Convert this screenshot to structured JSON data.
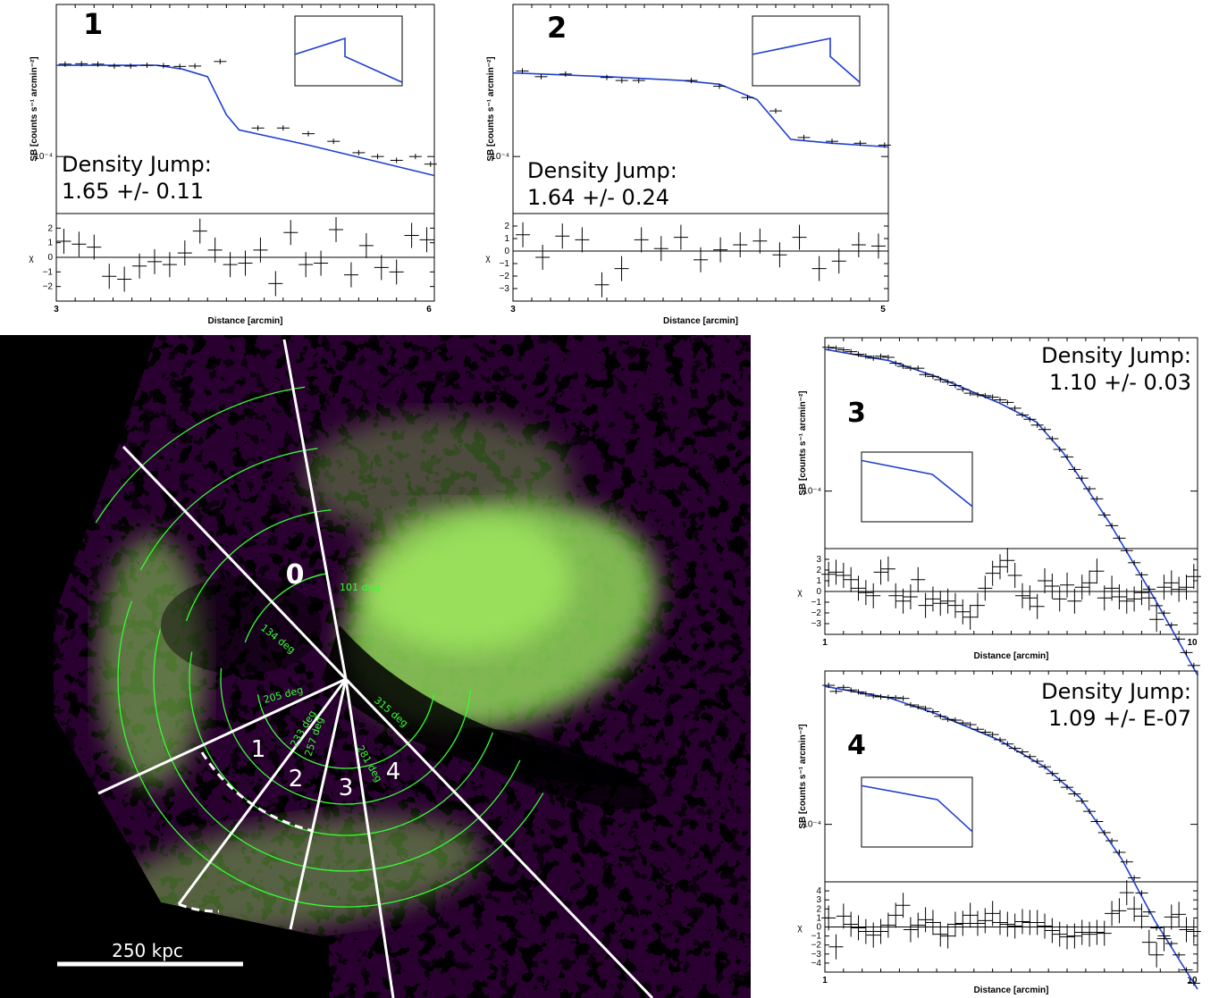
{
  "chart_data": [
    {
      "type": "line",
      "panel": "1",
      "ylabel": "SB [counts s⁻¹ arcmin⁻²]",
      "xlabel": "Distance [arcmin]",
      "chi_label": "χ",
      "x_ticks": [
        "3",
        "6"
      ],
      "y_tick": "10⁻⁴",
      "chi_ticks": [
        "2",
        "1",
        "0",
        "−1",
        "−2"
      ],
      "chi_range": [
        -3,
        3
      ],
      "annotation": [
        "Density Jump:",
        "1.65 +/- 0.11"
      ],
      "xlim": [
        3,
        6
      ],
      "jump_at": 4.4,
      "model_log": [
        [
          3.0,
          -3.76
        ],
        [
          3.4,
          -3.76
        ],
        [
          3.8,
          -3.76
        ],
        [
          4.0,
          -3.77
        ],
        [
          4.2,
          -3.79
        ],
        [
          4.35,
          -3.89
        ],
        [
          4.45,
          -3.93
        ],
        [
          5.0,
          -3.97
        ],
        [
          5.5,
          -4.01
        ],
        [
          6.0,
          -4.05
        ]
      ],
      "data_log": [
        [
          3.07,
          -3.757
        ],
        [
          3.2,
          -3.756
        ],
        [
          3.33,
          -3.757
        ],
        [
          3.46,
          -3.762
        ],
        [
          3.59,
          -3.762
        ],
        [
          3.72,
          -3.76
        ],
        [
          3.85,
          -3.761
        ],
        [
          3.98,
          -3.763
        ],
        [
          4.1,
          -3.762
        ],
        [
          4.3,
          -3.75
        ],
        [
          4.6,
          -3.925
        ],
        [
          4.8,
          -3.925
        ],
        [
          5.0,
          -3.94
        ],
        [
          5.2,
          -3.96
        ],
        [
          5.4,
          -3.99
        ],
        [
          5.55,
          -4.0
        ],
        [
          5.7,
          -4.01
        ],
        [
          5.85,
          -4.0
        ],
        [
          5.97,
          -4.02
        ]
      ],
      "chi": [
        1.1,
        0.9,
        0.7,
        -1.3,
        -1.5,
        -0.6,
        -0.3,
        -0.5,
        0.3,
        1.8,
        0.5,
        -0.5,
        -0.4,
        0.5,
        -1.8,
        1.7,
        -0.5,
        -0.4,
        1.9,
        -1.2,
        0.8,
        -0.7,
        -1.0,
        1.5,
        1.2
      ]
    },
    {
      "type": "line",
      "panel": "2",
      "ylabel": "SB [counts s⁻¹ arcmin⁻²]",
      "xlabel": "Distance [arcmin]",
      "chi_label": "χ",
      "x_ticks": [
        "3",
        "5"
      ],
      "y_tick": "10⁻⁴",
      "chi_ticks": [
        "2",
        "1",
        "0",
        "−1",
        "−2",
        "−3"
      ],
      "chi_range": [
        -4,
        3
      ],
      "annotation": [
        "Density Jump:",
        "1.64 +/- 0.24"
      ],
      "xlim": [
        3,
        5
      ],
      "jump_at": 4.45,
      "model_log": [
        [
          3.0,
          -3.78
        ],
        [
          3.5,
          -3.79
        ],
        [
          3.9,
          -3.8
        ],
        [
          4.1,
          -3.81
        ],
        [
          4.3,
          -3.85
        ],
        [
          4.42,
          -3.92
        ],
        [
          4.48,
          -3.955
        ],
        [
          4.7,
          -3.965
        ],
        [
          5.0,
          -3.975
        ]
      ],
      "data_log": [
        [
          3.05,
          -3.775
        ],
        [
          3.15,
          -3.79
        ],
        [
          3.28,
          -3.783
        ],
        [
          3.5,
          -3.792
        ],
        [
          3.58,
          -3.8
        ],
        [
          3.67,
          -3.8
        ],
        [
          3.95,
          -3.8
        ],
        [
          4.1,
          -3.815
        ],
        [
          4.25,
          -3.845
        ],
        [
          4.4,
          -3.88
        ],
        [
          4.55,
          -3.95
        ],
        [
          4.7,
          -3.96
        ],
        [
          4.85,
          -3.965
        ],
        [
          4.98,
          -3.97
        ]
      ],
      "chi": [
        1.3,
        -0.5,
        1.2,
        0.9,
        -2.7,
        -1.4,
        0.9,
        0.2,
        1.1,
        -0.7,
        0.1,
        0.5,
        0.8,
        -0.3,
        1.1,
        -1.4,
        -0.8,
        0.5,
        0.4
      ]
    },
    {
      "type": "line",
      "panel": "3",
      "ylabel": "SB [counts s⁻¹ arcmin⁻²]",
      "xlabel": "Distance [arcmin]",
      "chi_label": "χ",
      "x_ticks": [
        "1",
        "10"
      ],
      "y_tick": "10⁻⁴",
      "chi_ticks": [
        "3",
        "2",
        "1",
        "0",
        "−1",
        "−2",
        "−3"
      ],
      "chi_range": [
        -4,
        4
      ],
      "annotation": [
        "Density Jump:",
        "1.10 +/- 0.03"
      ],
      "xlim": [
        1,
        10.5
      ],
      "jump_at": 4.5,
      "model_log": [
        [
          1.0,
          -3.63
        ],
        [
          1.5,
          -3.66
        ],
        [
          2.0,
          -3.7
        ],
        [
          3.0,
          -3.77
        ],
        [
          3.8,
          -3.82
        ],
        [
          4.5,
          -3.9
        ],
        [
          6.0,
          -4.08
        ],
        [
          8.0,
          -4.28
        ],
        [
          10.5,
          -4.48
        ]
      ],
      "chi": [
        1.6,
        1.8,
        1.5,
        1.1,
        0.3,
        -0.1,
        -0.4,
        1.8,
        2.1,
        -0.4,
        -0.9,
        -0.5,
        1.1,
        -1.3,
        -0.7,
        -1.1,
        -0.9,
        -1.3,
        -1.9,
        -2.4,
        -1.3,
        0.3,
        1.7,
        2.3,
        2.9,
        1.5,
        -0.4,
        -0.6,
        -1.4,
        1.0,
        0.5,
        -0.7,
        0.6,
        -0.9,
        0.4,
        0.8,
        1.9,
        -0.6,
        0.3,
        -0.5,
        -0.9,
        -0.7,
        -0.1,
        -0.6,
        -2.6,
        0.4,
        0.8,
        0.2,
        0.4,
        1.4
      ]
    },
    {
      "type": "line",
      "panel": "4",
      "ylabel": "SB [counts s⁻¹ arcmin⁻²]",
      "xlabel": "Distance [arcmin]",
      "chi_label": "χ",
      "x_ticks": [
        "1",
        "10"
      ],
      "y_tick": "10⁻⁴",
      "chi_ticks": [
        "4",
        "3",
        "2",
        "1",
        "0",
        "−1",
        "−2",
        "−3",
        "−4"
      ],
      "chi_range": [
        -5,
        5
      ],
      "annotation": [
        "Density Jump:",
        "1.09 +/- E-07"
      ],
      "xlim": [
        1,
        10.5
      ],
      "jump_at": 5.0,
      "model_log": [
        [
          1.0,
          -3.64
        ],
        [
          1.5,
          -3.67
        ],
        [
          2.0,
          -3.71
        ],
        [
          3.0,
          -3.78
        ],
        [
          4.0,
          -3.85
        ],
        [
          5.0,
          -3.93
        ],
        [
          6.5,
          -4.09
        ],
        [
          8.0,
          -4.25
        ],
        [
          10.5,
          -4.43
        ]
      ],
      "chi": [
        1.0,
        -2.2,
        1.2,
        0.3,
        -0.1,
        -0.5,
        -0.9,
        -0.5,
        0.2,
        1.3,
        2.4,
        -0.3,
        0.2,
        0.8,
        0.5,
        -0.8,
        -1.0,
        0.3,
        0.4,
        1.3,
        0.4,
        0.7,
        1.5,
        0.5,
        0.3,
        0.1,
        0.6,
        0.5,
        0.5,
        0.1,
        -0.4,
        -0.8,
        -1.1,
        -1.0,
        -0.6,
        -0.8,
        -0.6,
        -0.7,
        1.5,
        1.8,
        3.8,
        2.0,
        1.2,
        -1.7,
        -3.1,
        -1.3,
        1.1,
        1.4,
        -0.3,
        -0.5
      ]
    }
  ],
  "map": {
    "sector_labels": [
      "0",
      "1",
      "2",
      "3",
      "4"
    ],
    "angle_labels": [
      "101 deg",
      "134 deg",
      "205 deg",
      "233 deg",
      "257 deg",
      "281 deg",
      "315 deg"
    ],
    "scalebar": "250 kpc"
  }
}
